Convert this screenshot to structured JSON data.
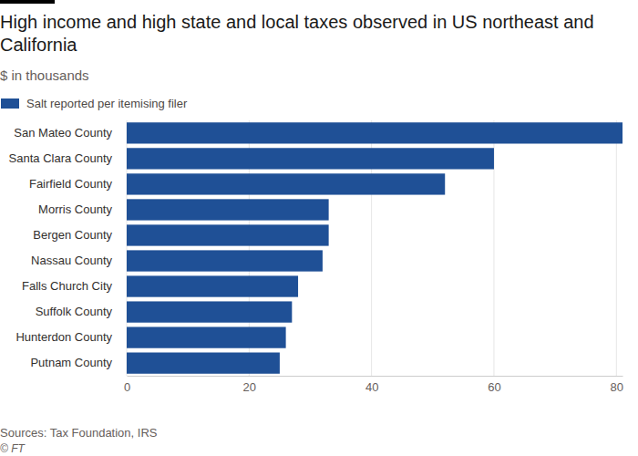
{
  "chart_data": {
    "type": "bar",
    "orientation": "horizontal",
    "title": "High income and high state and local taxes observed in US northeast and California",
    "subtitle": "$ in thousands",
    "categories": [
      "San Mateo County",
      "Santa Clara County",
      "Fairfield County",
      "Morris County",
      "Bergen County",
      "Nassau County",
      "Falls Church City",
      "Suffolk County",
      "Hunterdon County",
      "Putnam County"
    ],
    "series": [
      {
        "name": "Salt reported per itemising filer",
        "color": "#1f5096",
        "values": [
          81,
          60,
          52,
          33,
          33,
          32,
          28,
          27,
          26,
          25
        ]
      }
    ],
    "xlim": [
      0,
      81
    ],
    "xticks": [
      0,
      20,
      40,
      60,
      80
    ],
    "grid": true,
    "legend": "top-left",
    "source": "Sources: Tax Foundation, IRS",
    "credit": "© FT"
  }
}
